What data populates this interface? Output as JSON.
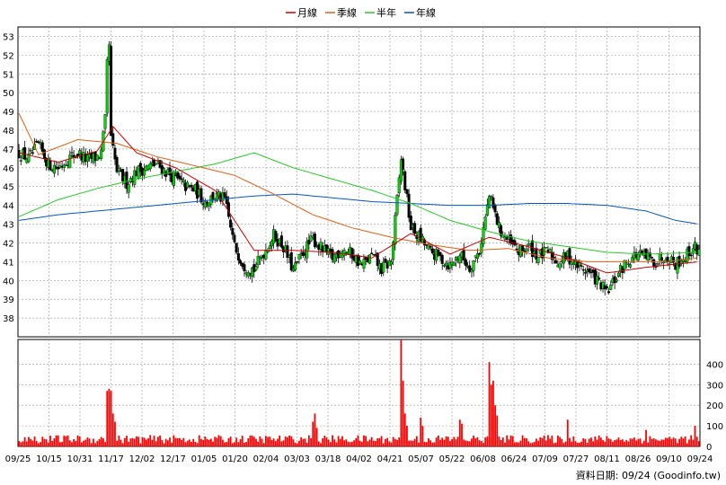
{
  "colors": {
    "up": "#00dd00",
    "down": "#000000",
    "ma_month": "#cc0000",
    "ma_quarter": "#e06010",
    "ma_half": "#22cc22",
    "ma_year": "#0055cc",
    "volume": "#ff0000",
    "grid": "#999999"
  },
  "chart_data": [
    {
      "type": "candlestick",
      "legend": [
        {
          "name": "月線",
          "color": "#cc0000"
        },
        {
          "name": "季線",
          "color": "#e06010"
        },
        {
          "name": "半年",
          "color": "#22cc22"
        },
        {
          "name": "年線",
          "color": "#0055cc"
        }
      ],
      "legend_position": "top-center",
      "ylim": [
        37,
        53.5
      ],
      "yticks": [
        38,
        39,
        40,
        41,
        42,
        43,
        44,
        45,
        46,
        47,
        48,
        49,
        50,
        51,
        52,
        53
      ],
      "xticks": [
        "09/25",
        "10/15",
        "10/31",
        "11/17",
        "12/02",
        "12/17",
        "01/05",
        "01/20",
        "02/04",
        "03/03",
        "03/18",
        "04/02",
        "04/21",
        "05/07",
        "05/22",
        "06/08",
        "06/24",
        "07/09",
        "07/27",
        "08/11",
        "08/26",
        "09/10",
        "09/24"
      ],
      "grid": true,
      "anchors": [
        [
          0,
          46.8
        ],
        [
          5,
          46.5
        ],
        [
          10,
          47.2
        ],
        [
          15,
          46.2
        ],
        [
          20,
          46.0
        ],
        [
          25,
          46.5
        ],
        [
          30,
          46.8
        ],
        [
          35,
          46.4
        ],
        [
          40,
          46.6
        ],
        [
          42,
          46.8
        ],
        [
          44,
          48.5
        ],
        [
          45,
          51.5
        ],
        [
          46,
          52.5
        ],
        [
          47,
          47.5
        ],
        [
          50,
          45.8
        ],
        [
          55,
          45.2
        ],
        [
          60,
          45.8
        ],
        [
          65,
          46.0
        ],
        [
          70,
          46.2
        ],
        [
          75,
          45.8
        ],
        [
          80,
          45.4
        ],
        [
          85,
          45.0
        ],
        [
          90,
          44.8
        ],
        [
          95,
          44.2
        ],
        [
          100,
          44.5
        ],
        [
          105,
          44.3
        ],
        [
          110,
          41.8
        ],
        [
          115,
          40.8
        ],
        [
          120,
          40.6
        ],
        [
          125,
          41.5
        ],
        [
          130,
          42.4
        ],
        [
          135,
          41.8
        ],
        [
          140,
          40.5
        ],
        [
          145,
          41.5
        ],
        [
          150,
          42.2
        ],
        [
          155,
          41.6
        ],
        [
          160,
          41.2
        ],
        [
          165,
          41.7
        ],
        [
          170,
          41.4
        ],
        [
          175,
          40.8
        ],
        [
          180,
          41.3
        ],
        [
          185,
          40.6
        ],
        [
          190,
          41.0
        ],
        [
          195,
          46.5
        ],
        [
          200,
          42.8
        ],
        [
          205,
          42.2
        ],
        [
          210,
          41.5
        ],
        [
          215,
          41.2
        ],
        [
          220,
          40.8
        ],
        [
          225,
          41.4
        ],
        [
          230,
          40.7
        ],
        [
          235,
          41.6
        ],
        [
          240,
          44.5
        ],
        [
          245,
          42.8
        ],
        [
          250,
          42.0
        ],
        [
          255,
          41.5
        ],
        [
          260,
          41.8
        ],
        [
          265,
          41.3
        ],
        [
          270,
          41.5
        ],
        [
          275,
          41.0
        ],
        [
          280,
          41.3
        ],
        [
          285,
          40.8
        ],
        [
          290,
          40.5
        ],
        [
          295,
          40.0
        ],
        [
          300,
          39.3
        ],
        [
          305,
          40.2
        ],
        [
          310,
          41.0
        ],
        [
          315,
          41.4
        ],
        [
          320,
          41.2
        ],
        [
          325,
          41.0
        ],
        [
          330,
          41.4
        ],
        [
          335,
          40.9
        ],
        [
          340,
          41.3
        ],
        [
          345,
          41.8
        ],
        [
          347,
          41.5
        ]
      ],
      "ma_month": [
        [
          0,
          46.8
        ],
        [
          20,
          46.3
        ],
        [
          40,
          46.9
        ],
        [
          48,
          48.2
        ],
        [
          60,
          46.8
        ],
        [
          80,
          46.0
        ],
        [
          100,
          44.8
        ],
        [
          120,
          41.6
        ],
        [
          140,
          41.6
        ],
        [
          160,
          41.5
        ],
        [
          180,
          41.2
        ],
        [
          200,
          42.5
        ],
        [
          220,
          41.4
        ],
        [
          240,
          42.3
        ],
        [
          260,
          41.8
        ],
        [
          280,
          41.2
        ],
        [
          300,
          40.4
        ],
        [
          320,
          40.7
        ],
        [
          347,
          41.0
        ]
      ],
      "ma_quarter": [
        [
          0,
          48.9
        ],
        [
          10,
          46.7
        ],
        [
          30,
          47.5
        ],
        [
          50,
          47.3
        ],
        [
          70,
          46.6
        ],
        [
          90,
          46.1
        ],
        [
          110,
          45.6
        ],
        [
          130,
          44.6
        ],
        [
          150,
          43.5
        ],
        [
          170,
          42.8
        ],
        [
          190,
          42.3
        ],
        [
          210,
          41.9
        ],
        [
          230,
          41.6
        ],
        [
          250,
          41.7
        ],
        [
          270,
          41.2
        ],
        [
          290,
          41.0
        ],
        [
          310,
          41.0
        ],
        [
          330,
          41.0
        ],
        [
          347,
          41.2
        ]
      ],
      "ma_half": [
        [
          0,
          43.4
        ],
        [
          20,
          44.3
        ],
        [
          40,
          44.9
        ],
        [
          60,
          45.4
        ],
        [
          80,
          45.8
        ],
        [
          100,
          46.2
        ],
        [
          120,
          46.8
        ],
        [
          140,
          46.0
        ],
        [
          160,
          45.4
        ],
        [
          180,
          44.8
        ],
        [
          200,
          44.1
        ],
        [
          220,
          43.2
        ],
        [
          240,
          42.6
        ],
        [
          260,
          42.1
        ],
        [
          280,
          41.8
        ],
        [
          300,
          41.5
        ],
        [
          320,
          41.4
        ],
        [
          347,
          41.5
        ]
      ],
      "ma_year": [
        [
          0,
          43.2
        ],
        [
          20,
          43.5
        ],
        [
          40,
          43.7
        ],
        [
          60,
          43.9
        ],
        [
          80,
          44.1
        ],
        [
          100,
          44.3
        ],
        [
          120,
          44.5
        ],
        [
          140,
          44.6
        ],
        [
          160,
          44.4
        ],
        [
          180,
          44.2
        ],
        [
          200,
          44.1
        ],
        [
          220,
          44.0
        ],
        [
          240,
          44.0
        ],
        [
          260,
          44.1
        ],
        [
          280,
          44.1
        ],
        [
          300,
          44.0
        ],
        [
          320,
          43.7
        ],
        [
          335,
          43.2
        ],
        [
          347,
          43.0
        ]
      ]
    },
    {
      "type": "bar",
      "ylim": [
        0,
        520
      ],
      "yticks": [
        0,
        100,
        200,
        300,
        400
      ],
      "spikes": [
        [
          45,
          270
        ],
        [
          46,
          280
        ],
        [
          47,
          270
        ],
        [
          48,
          160
        ],
        [
          49,
          120
        ],
        [
          150,
          120
        ],
        [
          151,
          160
        ],
        [
          152,
          90
        ],
        [
          195,
          520
        ],
        [
          196,
          320
        ],
        [
          197,
          160
        ],
        [
          198,
          100
        ],
        [
          205,
          140
        ],
        [
          206,
          100
        ],
        [
          240,
          410
        ],
        [
          241,
          300
        ],
        [
          242,
          320
        ],
        [
          243,
          200
        ],
        [
          244,
          150
        ],
        [
          225,
          130
        ],
        [
          226,
          110
        ],
        [
          280,
          130
        ],
        [
          320,
          80
        ],
        [
          345,
          100
        ]
      ]
    }
  ],
  "credit": "資料日期: 09/24  (Goodinfo.tw)"
}
